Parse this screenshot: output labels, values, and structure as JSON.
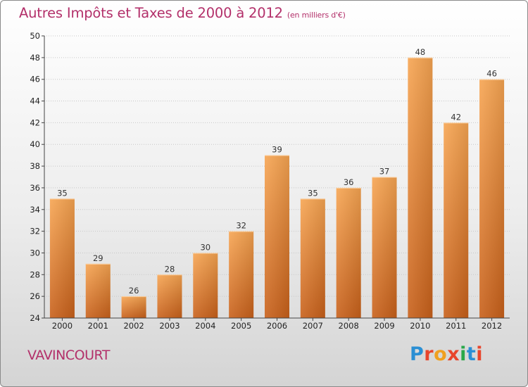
{
  "header": {
    "title": "Autres Impôts et Taxes de 2000 à 2012",
    "subtitle": "(en milliers d'€)"
  },
  "footer": {
    "place": "VAVINCOURT",
    "logo_text": "Proxiti"
  },
  "colors": {
    "title": "#b3306a",
    "bar_top": "#f7a552",
    "bar_bottom": "#c8601a"
  },
  "chart_data": {
    "type": "bar",
    "categories": [
      "2000",
      "2001",
      "2002",
      "2003",
      "2004",
      "2005",
      "2006",
      "2007",
      "2008",
      "2009",
      "2010",
      "2011",
      "2012"
    ],
    "values": [
      35,
      29,
      26,
      28,
      30,
      32,
      39,
      35,
      36,
      37,
      48,
      42,
      46
    ],
    "title": "Autres Impôts et Taxes de 2000 à 2012",
    "xlabel": "",
    "ylabel": "",
    "ylim": [
      24,
      50
    ],
    "yticks": [
      24,
      26,
      28,
      30,
      32,
      34,
      36,
      38,
      40,
      42,
      44,
      46,
      48,
      50
    ],
    "grid": true,
    "data_labels": true
  }
}
